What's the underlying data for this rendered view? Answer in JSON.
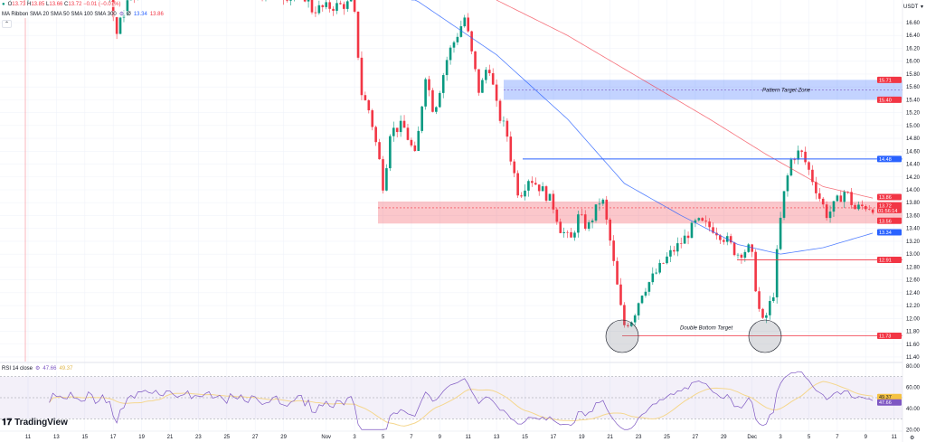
{
  "header": {
    "ohlc": {
      "o_label": "O",
      "o": "13.73",
      "h_label": "H",
      "h": "13.85",
      "l_label": "L",
      "l": "13.66",
      "c_label": "C",
      "c": "13.72",
      "change": "−0.01 (−0.07%)"
    },
    "indicator_label": "MA Ribbon SMA 20 SMA 50 SMA 100 SMA 300",
    "ma_values": [
      "13.34",
      "13.86"
    ],
    "currency": "USDT"
  },
  "rsi_legend": {
    "label": "RSI 14 close",
    "rsi": "47.66",
    "ma": "49.37"
  },
  "brand": "TradingView",
  "colors": {
    "up": "#089981",
    "down": "#f23645",
    "ma_blue": "#2962ff",
    "ma_red": "#f23645",
    "rsi": "#7e57c2",
    "rsi_ma": "#f5d78e",
    "zone_blue": "#2962ff",
    "zone_red": "#f23645"
  },
  "chart_data": {
    "type": "candlestick",
    "ylim": [
      11.3,
      16.95
    ],
    "y_ticks": [
      "16.60",
      "16.40",
      "16.20",
      "16.00",
      "15.80",
      "15.60",
      "15.40",
      "15.20",
      "15.00",
      "14.80",
      "14.60",
      "14.40",
      "14.20",
      "14.00",
      "13.80",
      "13.60",
      "13.40",
      "13.20",
      "13.00",
      "12.80",
      "12.60",
      "12.40",
      "12.20",
      "12.00",
      "11.80",
      "11.60",
      "11.40"
    ],
    "x_ticks": [
      "11",
      "13",
      "15",
      "17",
      "19",
      "21",
      "23",
      "25",
      "27",
      "29",
      "Nov",
      "3",
      "5",
      "7",
      "9",
      "11",
      "13",
      "15",
      "17",
      "19",
      "21",
      "23",
      "25",
      "27",
      "29",
      "Dec",
      "3",
      "5",
      "7",
      "9",
      "11"
    ],
    "price_path": [
      [
        "Oct 9 00",
        17.1
      ],
      [
        "Oct 16 17",
        17.1
      ],
      [
        "Oct 17 05",
        16.4
      ],
      [
        "Oct 17 22",
        16.9
      ],
      [
        "Oct 19 05",
        17.2
      ],
      [
        "Oct 30 17",
        17.0
      ],
      [
        "Oct 31 00",
        16.8
      ],
      [
        "Nov 2 22",
        16.9
      ],
      [
        "Nov 3 12",
        15.5
      ],
      [
        "Nov 4 02",
        15.2
      ],
      [
        "Nov 4 19",
        14.4
      ],
      [
        "Nov 5 02",
        13.95
      ],
      [
        "Nov 5 10",
        14.9
      ],
      [
        "Nov 6 10",
        15.0
      ],
      [
        "Nov 7 07",
        14.5
      ],
      [
        "Nov 8 00",
        15.8
      ],
      [
        "Nov 8 14",
        15.2
      ],
      [
        "Nov 9 14",
        16.1
      ],
      [
        "Nov 10 05",
        16.4
      ],
      [
        "Nov 10 19",
        16.7
      ],
      [
        "Nov 11 02",
        16.3
      ],
      [
        "Nov 11 19",
        15.5
      ],
      [
        "Nov 12 10",
        16.0
      ],
      [
        "Nov 13 02",
        15.2
      ],
      [
        "Nov 13 17",
        14.9
      ],
      [
        "Nov 14 00",
        14.5
      ],
      [
        "Nov 14 14",
        13.9
      ],
      [
        "Nov 15 07",
        14.2
      ],
      [
        "Nov 16 05",
        14.0
      ],
      [
        "Nov 16 22",
        13.8
      ],
      [
        "Nov 17 12",
        13.4
      ],
      [
        "Nov 18 05",
        13.2
      ],
      [
        "Nov 18 19",
        13.6
      ],
      [
        "Nov 19 10",
        13.4
      ],
      [
        "Nov 20 10",
        13.9
      ],
      [
        "Nov 21 00",
        13.2
      ],
      [
        "Nov 21 17",
        12.2
      ],
      [
        "Nov 22 00",
        11.9
      ],
      [
        "Nov 22 14",
        12.0
      ],
      [
        "Nov 23 05",
        12.4
      ],
      [
        "Nov 24 05",
        12.7
      ],
      [
        "Nov 25 05",
        13.0
      ],
      [
        "Nov 26 02",
        13.2
      ],
      [
        "Nov 27 02",
        13.5
      ],
      [
        "Nov 28 07",
        13.4
      ],
      [
        "Nov 29 07",
        13.2
      ],
      [
        "Nov 29 22",
        13.0
      ],
      [
        "Nov 30 22",
        13.1
      ],
      [
        "Dec 1 10",
        12.2
      ],
      [
        "Dec 1 19",
        11.9
      ],
      [
        "Dec 2 12",
        12.4
      ],
      [
        "Dec 2 22",
        13.4
      ],
      [
        "Dec 3 07",
        14.0
      ],
      [
        "Dec 3 19",
        14.5
      ],
      [
        "Dec 4 10",
        14.6
      ],
      [
        "Dec 5 00",
        14.3
      ],
      [
        "Dec 5 17",
        13.9
      ],
      [
        "Dec 6 07",
        13.6
      ],
      [
        "Dec 6 22",
        13.8
      ],
      [
        "Dec 7 14",
        14.0
      ],
      [
        "Dec 8 05",
        13.7
      ],
      [
        "Dec 8 22",
        13.75
      ],
      [
        "Dec 9 17",
        13.72
      ]
    ],
    "ma_blue_path": [
      [
        "Nov 7 00",
        17.0
      ],
      [
        "Nov 13 00",
        16.1
      ],
      [
        "Nov 18 00",
        15.1
      ],
      [
        "Nov 22 00",
        14.1
      ],
      [
        "Nov 26 00",
        13.6
      ],
      [
        "Nov 30 00",
        13.15
      ],
      [
        "Dec 3 00",
        13.0
      ],
      [
        "Dec 6 00",
        13.1
      ],
      [
        "Dec 9 17",
        13.34
      ]
    ],
    "ma_red_path": [
      [
        "Nov 13 00",
        16.95
      ],
      [
        "Nov 18 00",
        16.4
      ],
      [
        "Nov 23 00",
        15.75
      ],
      [
        "Nov 28 00",
        15.1
      ],
      [
        "Dec 2 00",
        14.55
      ],
      [
        "Dec 6 00",
        14.05
      ],
      [
        "Dec 9 17",
        13.86
      ]
    ],
    "annotations": {
      "pattern_zone": {
        "top": 15.71,
        "bottom": 15.4,
        "label": "Pattern Target Zone",
        "top_label": "15.71",
        "bottom_label": "15.40"
      },
      "support_zone": {
        "top": 13.86,
        "bottom": 13.56,
        "top_label": "13.86",
        "mid_label": "13.72",
        "countdown": "01:56:14",
        "bottom_label": "13.56"
      },
      "resistance_line": {
        "price": 14.48,
        "label": "14.48"
      },
      "ma_label": {
        "price": 13.34,
        "label": "13.34"
      },
      "level_line": {
        "price": 12.91,
        "label": "12.91"
      },
      "target_line": {
        "price": 11.73,
        "label": "11.73",
        "text": "Double Bottom Target"
      }
    },
    "rsi": {
      "ylim": [
        20,
        80
      ],
      "y_ticks": [
        "80.00",
        "60.00",
        "40.00",
        "20.00"
      ],
      "bands": [
        30,
        50,
        70
      ],
      "value": 47.66,
      "ma_value": 49.37
    }
  }
}
